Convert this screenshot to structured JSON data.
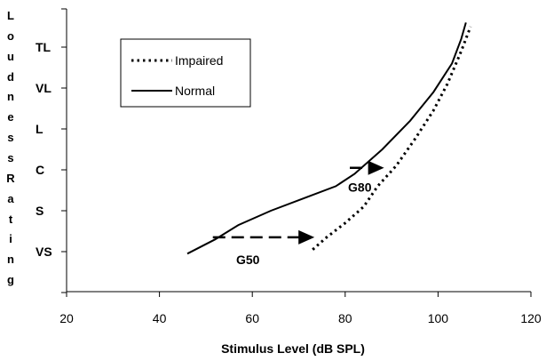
{
  "chart_data": {
    "type": "line",
    "xlabel": "Stimulus Level (dB SPL)",
    "ylabel": "Loudness Rating",
    "xlim": [
      20,
      120
    ],
    "x_ticks": [
      "20",
      "40",
      "60",
      "80",
      "100",
      "120"
    ],
    "y_categories": [
      "VS",
      "S",
      "C",
      "L",
      "VL",
      "TL"
    ],
    "ylim": [
      0,
      6.3
    ],
    "grid": false,
    "legend_position": "top-left",
    "series": [
      {
        "name": "Impaired",
        "style": "dotted",
        "color": "#000000",
        "points": [
          [
            73,
            0.05
          ],
          [
            76,
            0.35
          ],
          [
            80,
            0.7
          ],
          [
            84,
            1.1
          ],
          [
            87,
            1.6
          ],
          [
            91,
            2.1
          ],
          [
            95,
            2.75
          ],
          [
            99,
            3.45
          ],
          [
            102,
            4.1
          ],
          [
            105,
            4.9
          ],
          [
            107,
            5.5
          ]
        ]
      },
      {
        "name": "Normal",
        "style": "solid",
        "color": "#000000",
        "points": [
          [
            46,
            -0.05
          ],
          [
            52,
            0.3
          ],
          [
            57,
            0.65
          ],
          [
            64,
            1.0
          ],
          [
            71,
            1.3
          ],
          [
            78,
            1.6
          ],
          [
            82,
            1.9
          ],
          [
            88,
            2.5
          ],
          [
            94,
            3.2
          ],
          [
            99,
            3.9
          ],
          [
            103,
            4.6
          ],
          [
            105,
            5.2
          ],
          [
            106,
            5.6
          ]
        ]
      }
    ],
    "annotations": [
      {
        "label": "G50",
        "x_from": 51.5,
        "x_to": 73,
        "y": 0.35
      },
      {
        "label": "G80",
        "x_from": 81,
        "x_to": 88,
        "y": 2.05
      }
    ]
  }
}
